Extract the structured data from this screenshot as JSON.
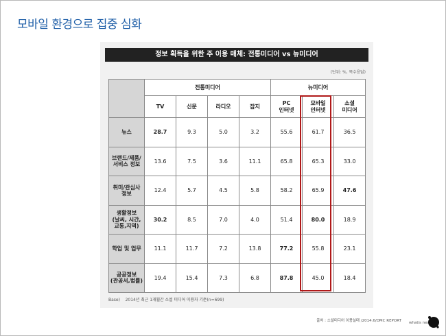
{
  "page_title": "모바일 환경으로 집중 심화",
  "table_title": "정보 획득을 위한 주 이용 매체: 전통미디어 vs 뉴미디어",
  "unit_note": "(단위: %, 복수응답)",
  "groups": {
    "traditional": "전통미디어",
    "new": "뉴미디어"
  },
  "columns": [
    "TV",
    "신문",
    "라디오",
    "잡지",
    "PC\n인터넷",
    "모바일\n인터넷",
    "소셜\n미디어"
  ],
  "rows": [
    {
      "label": "뉴스",
      "values": [
        "28.7",
        "9.3",
        "5.0",
        "3.2",
        "55.6",
        "61.7",
        "36.5"
      ],
      "highlight": [
        0
      ]
    },
    {
      "label": "브랜드/제품/\n서비스 정보",
      "values": [
        "13.6",
        "7.5",
        "3.6",
        "11.1",
        "65.8",
        "65.3",
        "33.0"
      ],
      "highlight": []
    },
    {
      "label": "취미/관심사\n정보",
      "values": [
        "12.4",
        "5.7",
        "4.5",
        "5.8",
        "58.2",
        "65.9",
        "47.6"
      ],
      "highlight": [
        6
      ]
    },
    {
      "label": "생활정보\n(날씨, 시간,\n교통,지역)",
      "values": [
        "30.2",
        "8.5",
        "7.0",
        "4.0",
        "51.4",
        "80.0",
        "18.9"
      ],
      "highlight": [
        0,
        5
      ]
    },
    {
      "label": "학업 및 업무",
      "values": [
        "11.1",
        "11.7",
        "7.2",
        "13.8",
        "77.2",
        "55.8",
        "23.1"
      ],
      "highlight": [
        4
      ]
    },
    {
      "label": "공공정보\n(관공서,법률)",
      "values": [
        "19.4",
        "15.4",
        "7.3",
        "6.8",
        "87.8",
        "45.0",
        "18.4"
      ],
      "highlight": [
        4
      ]
    }
  ],
  "base_label": "Base)",
  "base_note": "2014년 최근 1개월간 소셜 미디어 이용자 기준(n=699)",
  "source": "출처 : 소셜미디어 이용실태 /2014.6/DMC REPORT",
  "logo_text": "whatis next",
  "colors": {
    "title": "#1f5fa8",
    "highlight": "#cc2222",
    "box": "#b01818"
  }
}
